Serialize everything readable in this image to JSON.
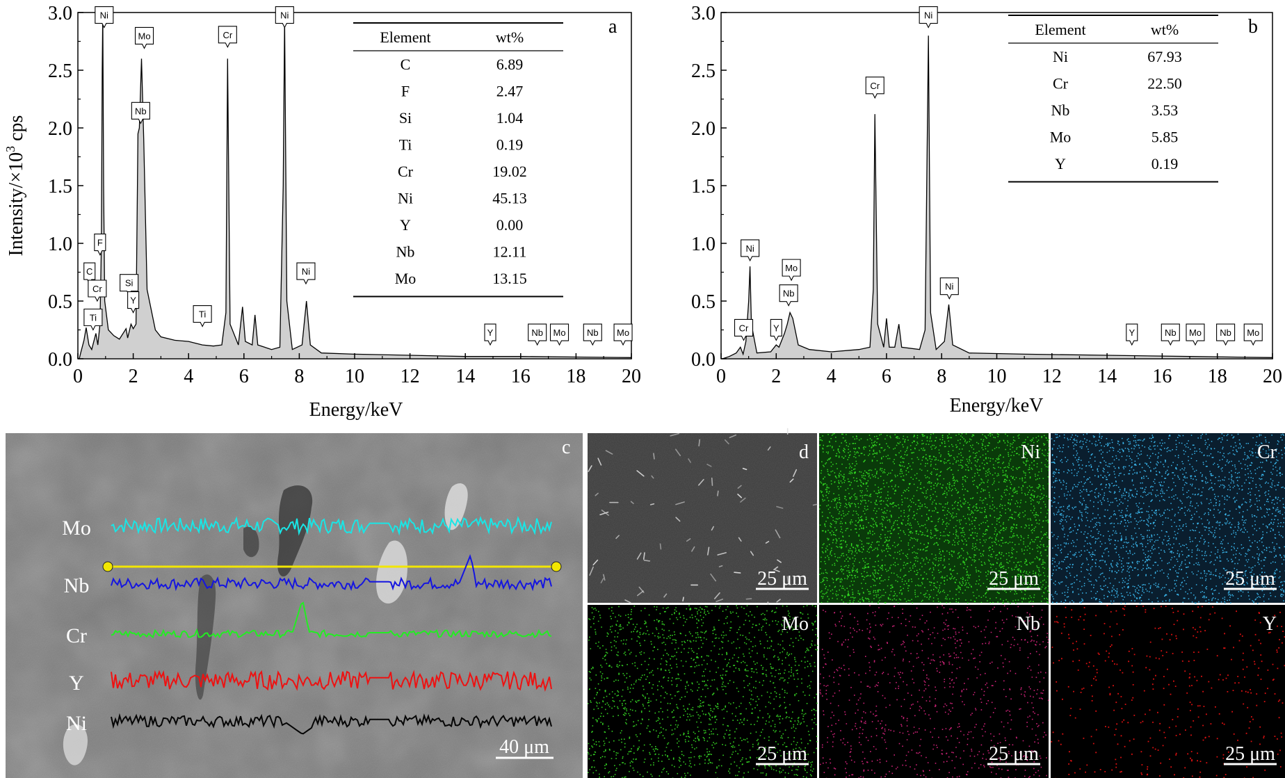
{
  "chart_data": [
    {
      "panel": "a",
      "type": "line",
      "xlabel": "Energy/keV",
      "ylabel_main": "Intensity/×10",
      "ylabel_sup": "3",
      "ylabel_tail": " cps",
      "xlim": [
        0,
        20
      ],
      "ylim": [
        0,
        3.0
      ],
      "xticks": [
        "0",
        "2",
        "4",
        "6",
        "8",
        "10",
        "12",
        "14",
        "16",
        "18",
        "20"
      ],
      "yticks": [
        "0.0",
        "0.5",
        "1.0",
        "1.5",
        "2.0",
        "2.5",
        "3.0"
      ],
      "baseline": [
        [
          0.05,
          0
        ],
        [
          0.1,
          0.05
        ],
        [
          0.22,
          0.16
        ],
        [
          0.3,
          0.27
        ],
        [
          0.4,
          0.12
        ],
        [
          0.5,
          0.08
        ],
        [
          0.65,
          0.22
        ],
        [
          0.72,
          0.12
        ],
        [
          0.8,
          0.3
        ],
        [
          0.85,
          1.0
        ],
        [
          0.88,
          2.5
        ],
        [
          0.9,
          3.0
        ],
        [
          0.93,
          1.5
        ],
        [
          0.97,
          0.5
        ],
        [
          1.1,
          0.25
        ],
        [
          1.3,
          0.2
        ],
        [
          1.5,
          0.17
        ],
        [
          1.74,
          0.26
        ],
        [
          1.8,
          0.18
        ],
        [
          1.92,
          0.3
        ],
        [
          2.0,
          0.26
        ],
        [
          2.1,
          0.3
        ],
        [
          2.17,
          1.95
        ],
        [
          2.22,
          2.0
        ],
        [
          2.3,
          2.6
        ],
        [
          2.38,
          1.9
        ],
        [
          2.5,
          0.6
        ],
        [
          2.8,
          0.25
        ],
        [
          3.0,
          0.19
        ],
        [
          3.5,
          0.16
        ],
        [
          4.0,
          0.15
        ],
        [
          4.5,
          0.12
        ],
        [
          4.9,
          0.11
        ],
        [
          5.2,
          0.12
        ],
        [
          5.35,
          0.4
        ],
        [
          5.41,
          2.6
        ],
        [
          5.5,
          0.3
        ],
        [
          5.8,
          0.12
        ],
        [
          5.95,
          0.45
        ],
        [
          6.05,
          0.15
        ],
        [
          6.3,
          0.12
        ],
        [
          6.4,
          0.38
        ],
        [
          6.5,
          0.12
        ],
        [
          7.0,
          0.08
        ],
        [
          7.3,
          0.1
        ],
        [
          7.42,
          1.5
        ],
        [
          7.47,
          2.95
        ],
        [
          7.55,
          0.5
        ],
        [
          7.75,
          0.08
        ],
        [
          8.1,
          0.12
        ],
        [
          8.26,
          0.5
        ],
        [
          8.4,
          0.12
        ],
        [
          8.8,
          0.05
        ],
        [
          10.0,
          0.04
        ],
        [
          12.0,
          0.03
        ],
        [
          14.0,
          0.02
        ],
        [
          16.0,
          0.02
        ],
        [
          18.0,
          0.015
        ],
        [
          20.0,
          0.01
        ]
      ],
      "peak_labels": [
        {
          "text": "Ni",
          "x": 0.95,
          "y": 2.87,
          "pointer": "down"
        },
        {
          "text": "Mo",
          "x": 2.4,
          "y": 2.69,
          "pointer": "down"
        },
        {
          "text": "Nb",
          "x": 2.27,
          "y": 2.04,
          "pointer": "down"
        },
        {
          "text": "Cr",
          "x": 5.41,
          "y": 2.7,
          "pointer": "down"
        },
        {
          "text": "Ni",
          "x": 7.47,
          "y": 2.87,
          "pointer": "down"
        },
        {
          "text": "Ni",
          "x": 8.24,
          "y": 0.65,
          "pointer": "down"
        },
        {
          "text": "F",
          "x": 0.8,
          "y": 0.9,
          "pointer": "down"
        },
        {
          "text": "C",
          "x": 0.42,
          "y": 0.65,
          "pointer": "down"
        },
        {
          "text": "Cr",
          "x": 0.7,
          "y": 0.5,
          "pointer": "down"
        },
        {
          "text": "Ti",
          "x": 0.55,
          "y": 0.25,
          "pointer": "down"
        },
        {
          "text": "Si",
          "x": 1.85,
          "y": 0.55,
          "pointer": "down"
        },
        {
          "text": "Y",
          "x": 2.0,
          "y": 0.4,
          "pointer": "down"
        },
        {
          "text": "Ti",
          "x": 4.5,
          "y": 0.28,
          "pointer": "down"
        },
        {
          "text": "Y",
          "x": 14.9,
          "y": 0.12,
          "pointer": "down"
        },
        {
          "text": "Nb",
          "x": 16.6,
          "y": 0.12,
          "pointer": "down"
        },
        {
          "text": "Mo",
          "x": 17.4,
          "y": 0.12,
          "pointer": "down"
        },
        {
          "text": "Nb",
          "x": 18.6,
          "y": 0.12,
          "pointer": "down"
        },
        {
          "text": "Mo",
          "x": 19.7,
          "y": 0.12,
          "pointer": "down"
        }
      ],
      "table": {
        "headers": [
          "Element",
          "wt%"
        ],
        "rows": [
          [
            "C",
            "6.89"
          ],
          [
            "F",
            "2.47"
          ],
          [
            "Si",
            "1.04"
          ],
          [
            "Ti",
            "0.19"
          ],
          [
            "Cr",
            "19.02"
          ],
          [
            "Ni",
            "45.13"
          ],
          [
            "Y",
            "0.00"
          ],
          [
            "Nb",
            "12.11"
          ],
          [
            "Mo",
            "13.15"
          ]
        ]
      }
    },
    {
      "panel": "b",
      "type": "line",
      "xlabel": "Energy/keV",
      "xlim": [
        0,
        20
      ],
      "ylim": [
        0,
        3.0
      ],
      "xticks": [
        "0",
        "2",
        "4",
        "6",
        "8",
        "10",
        "12",
        "14",
        "16",
        "18",
        "20"
      ],
      "yticks": [
        "0.0",
        "0.5",
        "1.0",
        "1.5",
        "2.0",
        "2.5",
        "3.0"
      ],
      "baseline": [
        [
          0.05,
          0
        ],
        [
          0.3,
          0.02
        ],
        [
          0.55,
          0.05
        ],
        [
          0.7,
          0.1
        ],
        [
          0.8,
          0.04
        ],
        [
          0.9,
          0.15
        ],
        [
          1.0,
          0.5
        ],
        [
          1.05,
          0.8
        ],
        [
          1.1,
          0.3
        ],
        [
          1.3,
          0.05
        ],
        [
          1.8,
          0.06
        ],
        [
          2.0,
          0.12
        ],
        [
          2.1,
          0.1
        ],
        [
          2.3,
          0.22
        ],
        [
          2.4,
          0.3
        ],
        [
          2.5,
          0.4
        ],
        [
          2.6,
          0.35
        ],
        [
          2.8,
          0.12
        ],
        [
          3.2,
          0.08
        ],
        [
          4.0,
          0.06
        ],
        [
          5.0,
          0.08
        ],
        [
          5.4,
          0.1
        ],
        [
          5.52,
          0.6
        ],
        [
          5.58,
          2.12
        ],
        [
          5.68,
          0.3
        ],
        [
          5.9,
          0.1
        ],
        [
          6.0,
          0.35
        ],
        [
          6.1,
          0.1
        ],
        [
          6.3,
          0.1
        ],
        [
          6.45,
          0.3
        ],
        [
          6.55,
          0.1
        ],
        [
          7.2,
          0.08
        ],
        [
          7.4,
          0.25
        ],
        [
          7.52,
          2.8
        ],
        [
          7.6,
          0.4
        ],
        [
          7.8,
          0.08
        ],
        [
          8.1,
          0.15
        ],
        [
          8.26,
          0.47
        ],
        [
          8.4,
          0.12
        ],
        [
          9.0,
          0.05
        ],
        [
          11.0,
          0.04
        ],
        [
          14.0,
          0.03
        ],
        [
          17.0,
          0.02
        ],
        [
          20.0,
          0.01
        ]
      ],
      "peak_labels": [
        {
          "text": "Ni",
          "x": 7.52,
          "y": 2.87,
          "pointer": "down"
        },
        {
          "text": "Cr",
          "x": 5.58,
          "y": 2.26,
          "pointer": "down"
        },
        {
          "text": "Ni",
          "x": 1.05,
          "y": 0.85,
          "pointer": "down"
        },
        {
          "text": "Mo",
          "x": 2.55,
          "y": 0.68,
          "pointer": "down"
        },
        {
          "text": "Nb",
          "x": 2.45,
          "y": 0.46,
          "pointer": "down"
        },
        {
          "text": "Cr",
          "x": 0.82,
          "y": 0.16,
          "pointer": "down"
        },
        {
          "text": "Y",
          "x": 2.0,
          "y": 0.16,
          "pointer": "down"
        },
        {
          "text": "Ni",
          "x": 8.28,
          "y": 0.52,
          "pointer": "down"
        },
        {
          "text": "Y",
          "x": 14.9,
          "y": 0.12,
          "pointer": "down"
        },
        {
          "text": "Nb",
          "x": 16.3,
          "y": 0.12,
          "pointer": "down"
        },
        {
          "text": "Mo",
          "x": 17.2,
          "y": 0.12,
          "pointer": "down"
        },
        {
          "text": "Nb",
          "x": 18.3,
          "y": 0.12,
          "pointer": "down"
        },
        {
          "text": "Mo",
          "x": 19.3,
          "y": 0.12,
          "pointer": "down"
        }
      ],
      "table": {
        "headers": [
          "Element",
          "wt%"
        ],
        "rows": [
          [
            "Ni",
            "67.93"
          ],
          [
            "Cr",
            "22.50"
          ],
          [
            "Nb",
            "3.53"
          ],
          [
            "Mo",
            "5.85"
          ],
          [
            "Y",
            "0.19"
          ]
        ]
      }
    }
  ],
  "panel_letters": {
    "a": "a",
    "b": "b",
    "c": "c",
    "d": "d"
  },
  "line_scan": {
    "traces": [
      {
        "label": "Mo",
        "color": "#19e6e6"
      },
      {
        "label": "Nb",
        "color": "#1515e0"
      },
      {
        "label": "Cr",
        "color": "#22ee22"
      },
      {
        "label": "Y",
        "color": "#ee1111"
      },
      {
        "label": "Ni",
        "color": "#050505"
      }
    ],
    "scan_line_color": "#f2e600",
    "scale_bar": "40 μm"
  },
  "maps": [
    {
      "label": "d",
      "kind": "sem",
      "scale": "25 μm",
      "dot_color": "#dddddd"
    },
    {
      "label": "Ni",
      "kind": "map",
      "scale": "25 μm",
      "dot_color": "#33dd22",
      "bg": "#0a3a0a"
    },
    {
      "label": "Cr",
      "kind": "map",
      "scale": "25 μm",
      "dot_color": "#3ab8ee",
      "bg": "#0a1e2e"
    },
    {
      "label": "Mo",
      "kind": "map",
      "scale": "25 μm",
      "dot_color": "#33cc22",
      "bg": "#000000"
    },
    {
      "label": "Nb",
      "kind": "map",
      "scale": "25 μm",
      "dot_color": "#cc2277",
      "bg": "#000000"
    },
    {
      "label": "Y",
      "kind": "map",
      "scale": "25 μm",
      "dot_color": "#dd1111",
      "bg": "#000000"
    }
  ]
}
